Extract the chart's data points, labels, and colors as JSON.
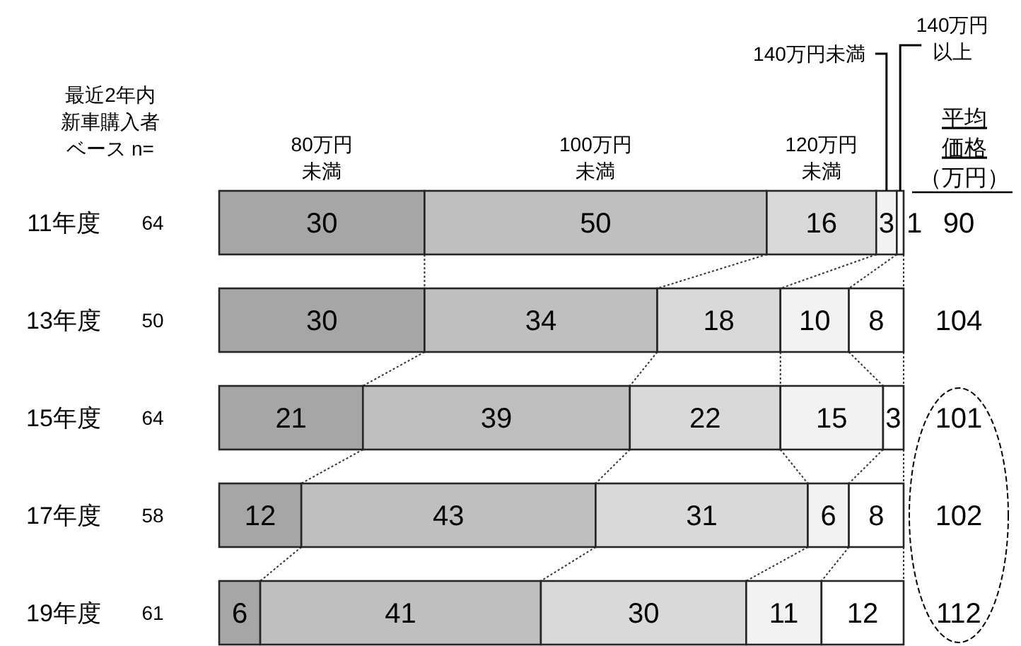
{
  "chart_data": {
    "type": "bar",
    "orientation": "horizontal",
    "stacked": true,
    "categories": [
      "11年度",
      "13年度",
      "15年度",
      "17年度",
      "19年度"
    ],
    "series": [
      {
        "name": "80万円未満",
        "color": "#a6a6a6",
        "values": [
          30,
          30,
          21,
          12,
          6
        ]
      },
      {
        "name": "100万円未満",
        "color": "#bfbfbf",
        "values": [
          50,
          34,
          39,
          43,
          41
        ]
      },
      {
        "name": "120万円未満",
        "color": "#d9d9d9",
        "values": [
          16,
          18,
          22,
          31,
          30
        ]
      },
      {
        "name": "140万円未満",
        "color": "#f2f2f2",
        "values": [
          3,
          10,
          15,
          6,
          11
        ]
      },
      {
        "name": "140万円以上",
        "color": "#ffffff",
        "values": [
          1,
          8,
          3,
          8,
          12
        ]
      }
    ],
    "data_labels": true,
    "legend": "top",
    "annotations": [
      "最近2年内新車購入者ベース n=",
      "64",
      "50",
      "64",
      "58",
      "61",
      "平均価格（万円）",
      "90",
      "104",
      "101",
      "102",
      "112"
    ]
  }
}
